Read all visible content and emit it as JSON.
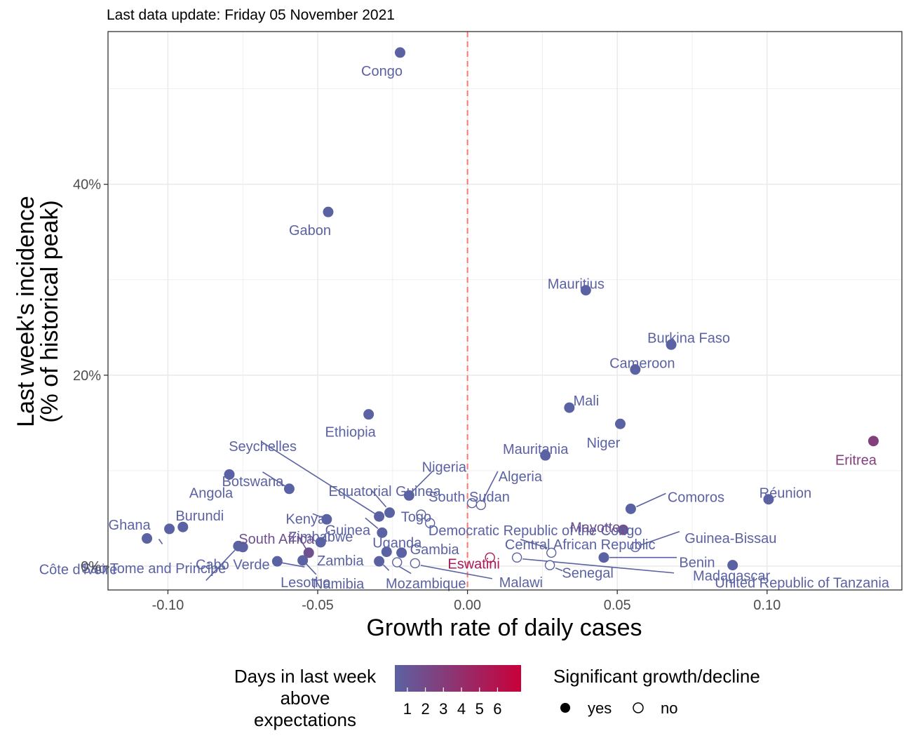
{
  "subtitle": "Last data update: Friday 05 November 2021",
  "axes": {
    "x_title": "Growth rate of daily cases",
    "y_title_line1": "Last week's incidence",
    "y_title_line2": "(% of historical peak)",
    "x_ticks": [
      {
        "value": -0.1,
        "label": "-0.10"
      },
      {
        "value": -0.05,
        "label": "-0.05"
      },
      {
        "value": 0.0,
        "label": "0.00"
      },
      {
        "value": 0.05,
        "label": "0.05"
      },
      {
        "value": 0.1,
        "label": "0.10"
      }
    ],
    "y_ticks": [
      {
        "value": 0,
        "label": "0%"
      },
      {
        "value": 20,
        "label": "20%"
      },
      {
        "value": 40,
        "label": "40%"
      }
    ]
  },
  "legend": {
    "color_title_lines": [
      "Days in last week",
      "above",
      "expectations"
    ],
    "color_labels": [
      "1",
      "2",
      "3",
      "4",
      "5",
      "6"
    ],
    "color_low": "#5b62a3",
    "color_high": "#c8003a",
    "shape_title": "Significant growth/decline",
    "shape_yes": "yes",
    "shape_no": "no"
  },
  "colors": {
    "ref_line": "#f8766d",
    "grid": "#ebebeb",
    "panel_border": "#333333"
  },
  "chart_data": {
    "type": "scatter",
    "xlim": [
      -0.12,
      0.145
    ],
    "ylim": [
      -2.5,
      56
    ],
    "points": [
      {
        "name": "Congo",
        "x": -0.0225,
        "y": 53.8,
        "days": 1,
        "significant": true
      },
      {
        "name": "Gabon",
        "x": -0.0465,
        "y": 37.1,
        "days": 1,
        "significant": true
      },
      {
        "name": "Mauritius",
        "x": 0.0395,
        "y": 28.9,
        "days": 1,
        "significant": true
      },
      {
        "name": "Burkina Faso",
        "x": 0.068,
        "y": 23.2,
        "days": 1,
        "significant": true
      },
      {
        "name": "Cameroon",
        "x": 0.056,
        "y": 20.6,
        "days": 1,
        "significant": true
      },
      {
        "name": "Mali",
        "x": 0.034,
        "y": 16.6,
        "days": 1,
        "significant": true
      },
      {
        "name": "Ethiopia",
        "x": -0.033,
        "y": 15.9,
        "days": 1,
        "significant": true
      },
      {
        "name": "Niger",
        "x": 0.051,
        "y": 14.9,
        "days": 1,
        "significant": true
      },
      {
        "name": "Eritrea",
        "x": 0.1355,
        "y": 13.1,
        "days": 3,
        "significant": true
      },
      {
        "name": "Mauritania",
        "x": 0.026,
        "y": 11.6,
        "days": 1,
        "significant": true
      },
      {
        "name": "Angola",
        "x": -0.0795,
        "y": 9.6,
        "days": 1,
        "significant": true
      },
      {
        "name": "Botswana",
        "x": -0.0595,
        "y": 8.1,
        "days": 1,
        "significant": true
      },
      {
        "name": "Nigeria",
        "x": -0.0195,
        "y": 7.4,
        "days": 1,
        "significant": true
      },
      {
        "name": "Réunion",
        "x": 0.1005,
        "y": 7.0,
        "days": 1,
        "significant": true
      },
      {
        "name": "South Sudan",
        "x": 0.0015,
        "y": 6.6,
        "days": 1,
        "significant": false
      },
      {
        "name": "Algeria",
        "x": 0.0045,
        "y": 6.4,
        "days": 1,
        "significant": false
      },
      {
        "name": "Comoros",
        "x": 0.0545,
        "y": 6.0,
        "days": 1,
        "significant": true
      },
      {
        "name": "Equatorial Guinea",
        "x": -0.026,
        "y": 5.6,
        "days": 1,
        "significant": true
      },
      {
        "name": "Seychelles",
        "x": -0.0295,
        "y": 5.2,
        "days": 1,
        "significant": true
      },
      {
        "name": "Kenya",
        "x": -0.047,
        "y": 4.9,
        "days": 1,
        "significant": true
      },
      {
        "name": "Togo",
        "x": -0.0155,
        "y": 5.4,
        "days": 1,
        "significant": false
      },
      {
        "name": "Democratic Republic of the Congo",
        "x": -0.0125,
        "y": 4.5,
        "days": 1,
        "significant": false
      },
      {
        "name": "Burundi",
        "x": -0.095,
        "y": 4.1,
        "days": 1,
        "significant": true
      },
      {
        "name": "Ghana",
        "x": -0.0995,
        "y": 3.9,
        "days": 1,
        "significant": true
      },
      {
        "name": "Mayotte",
        "x": 0.052,
        "y": 3.8,
        "days": 2,
        "significant": true
      },
      {
        "name": "Guinea",
        "x": -0.0285,
        "y": 3.5,
        "days": 1,
        "significant": true
      },
      {
        "name": "Côte d'Ivoire",
        "x": -0.107,
        "y": 2.9,
        "days": 1,
        "significant": true
      },
      {
        "name": "Zimbabwe",
        "x": -0.049,
        "y": 2.5,
        "days": 1,
        "significant": true
      },
      {
        "name": "Cabo Verde",
        "x": -0.0765,
        "y": 2.1,
        "days": 1,
        "significant": true
      },
      {
        "name": "Sao Tome and Principe",
        "x": -0.075,
        "y": 2.0,
        "days": 1,
        "significant": true
      },
      {
        "name": "Guinea-Bissau",
        "x": 0.056,
        "y": 2.0,
        "days": 1,
        "significant": false
      },
      {
        "name": "Uganda",
        "x": -0.027,
        "y": 1.5,
        "days": 1,
        "significant": true
      },
      {
        "name": "South Africa",
        "x": -0.053,
        "y": 1.4,
        "days": 2,
        "significant": true
      },
      {
        "name": "Gambia",
        "x": -0.022,
        "y": 1.4,
        "days": 1,
        "significant": true
      },
      {
        "name": "Central African Republic",
        "x": 0.028,
        "y": 1.4,
        "days": 1,
        "significant": false
      },
      {
        "name": "Eswatini",
        "x": 0.0075,
        "y": 0.9,
        "days": 5,
        "significant": false
      },
      {
        "name": "Benin",
        "x": 0.0455,
        "y": 0.9,
        "days": 1,
        "significant": true
      },
      {
        "name": "Madagascar",
        "x": 0.0165,
        "y": 0.9,
        "days": 1,
        "significant": false
      },
      {
        "name": "Lesotho",
        "x": -0.055,
        "y": 0.6,
        "days": 1,
        "significant": true
      },
      {
        "name": "Zambia",
        "x": -0.0635,
        "y": 0.5,
        "days": 1,
        "significant": true
      },
      {
        "name": "Namibia",
        "x": -0.0295,
        "y": 0.5,
        "days": 1,
        "significant": true
      },
      {
        "name": "Mozambique",
        "x": -0.0235,
        "y": 0.4,
        "days": 1,
        "significant": false
      },
      {
        "name": "Malawi",
        "x": -0.0175,
        "y": 0.3,
        "days": 1,
        "significant": false
      },
      {
        "name": "Senegal",
        "x": 0.0275,
        "y": 0.1,
        "days": 1,
        "significant": false
      },
      {
        "name": "United Republic of Tanzania",
        "x": 0.0885,
        "y": 0.1,
        "days": 1,
        "significant": true
      }
    ]
  }
}
